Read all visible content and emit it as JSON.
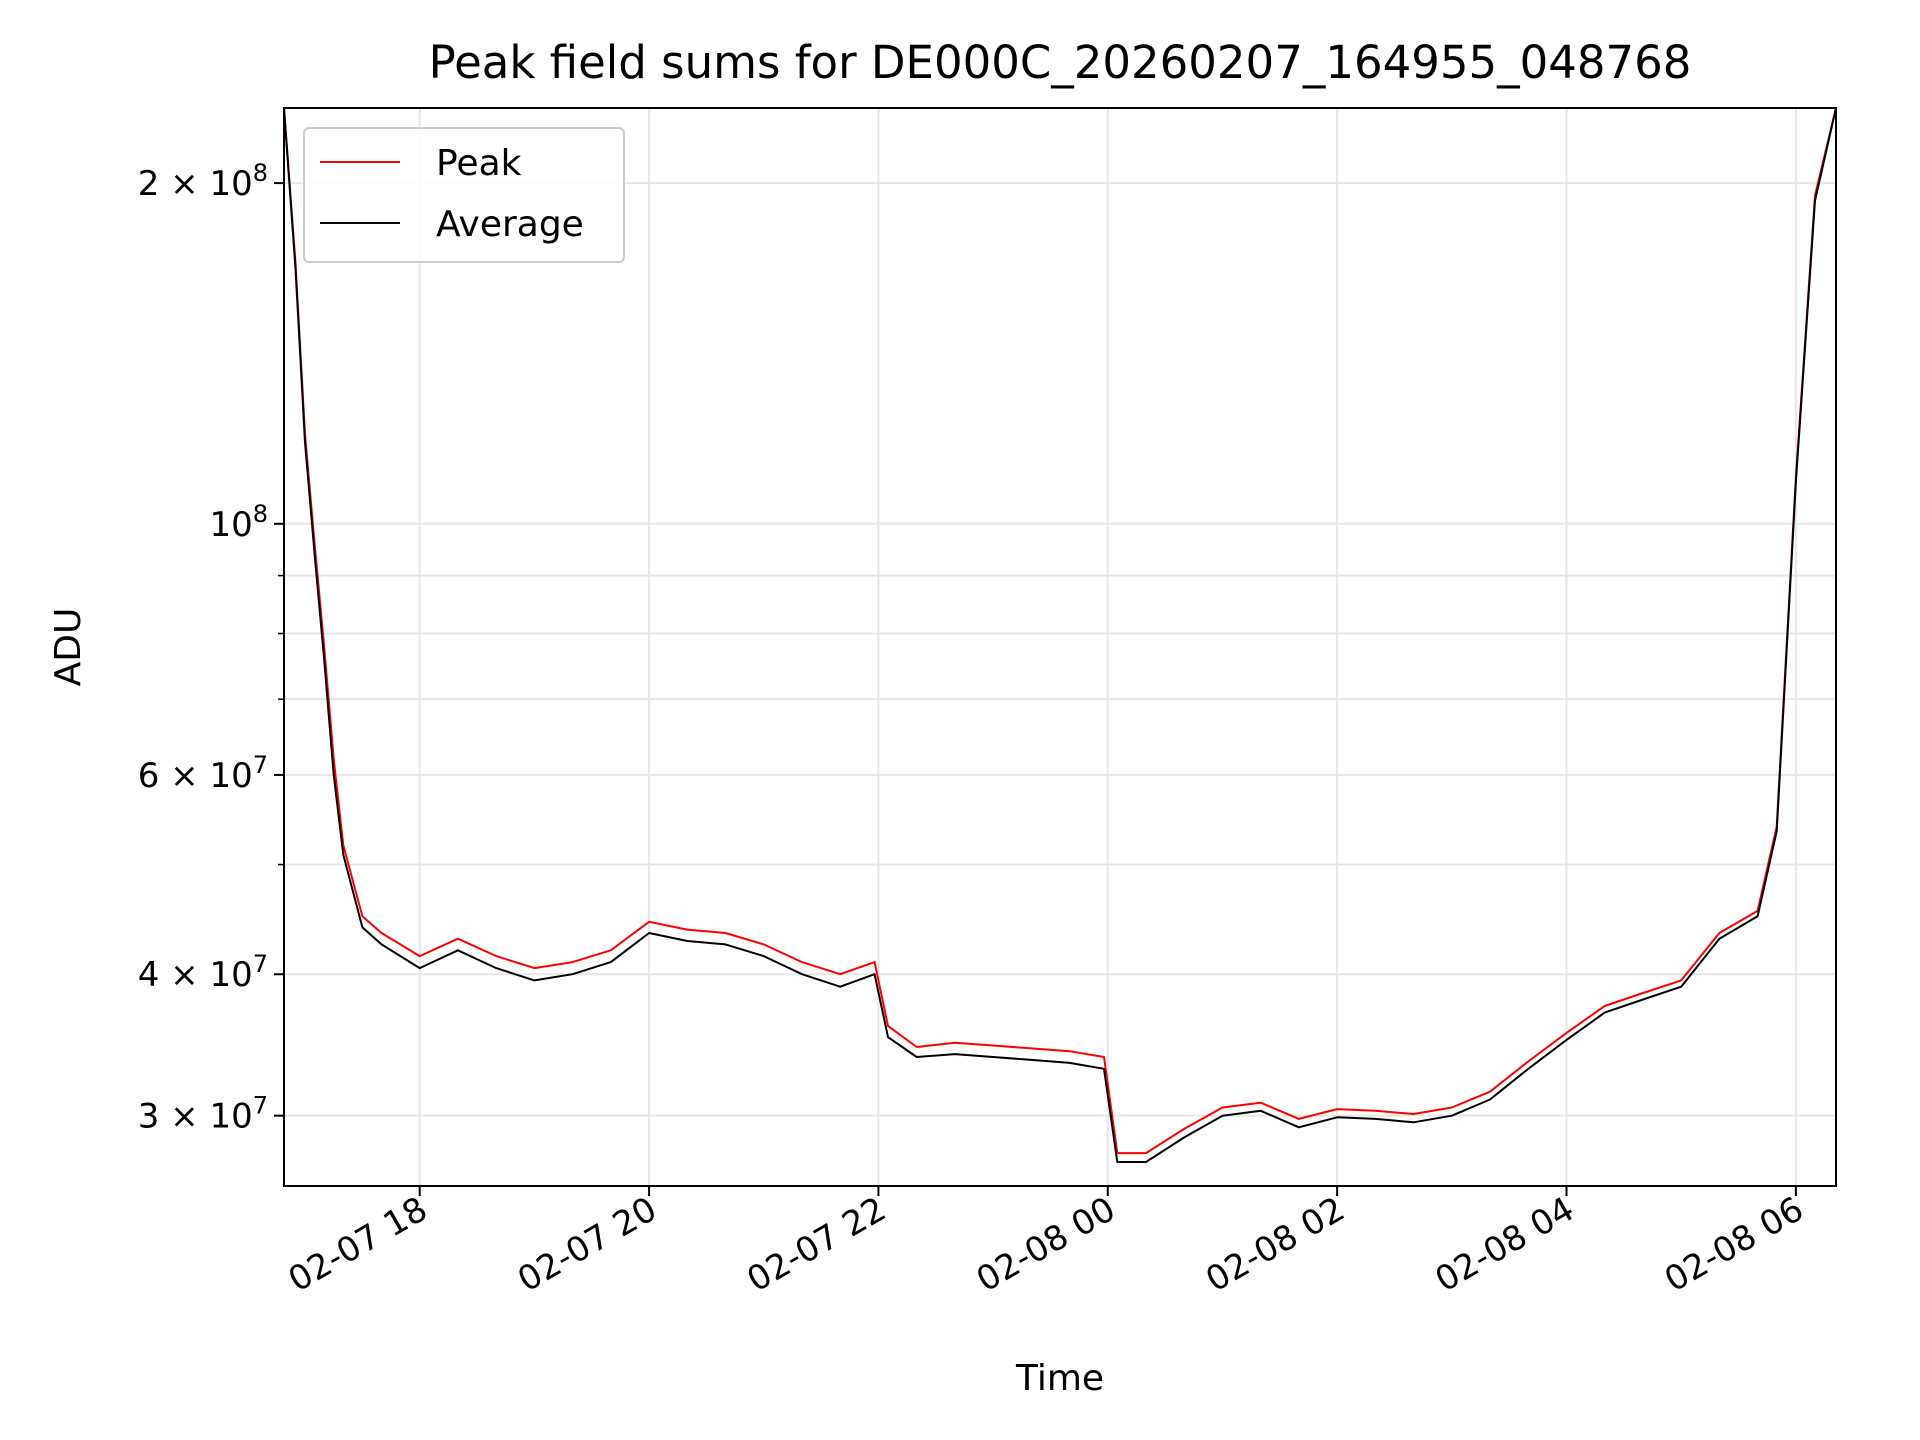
{
  "chart_data": {
    "type": "line",
    "title": "Peak field sums for DE000C_20260207_164955_048768",
    "xlabel": "Time",
    "ylabel": "ADU",
    "y_scale": "log",
    "ylim": [
      26000000,
      233000000
    ],
    "xlim": [
      "02-07 16:49",
      "02-08 06:21"
    ],
    "grid": true,
    "legend_position": "upper-left",
    "x_ticks": [
      {
        "t": "02-07 18:00",
        "label": "02-07 18"
      },
      {
        "t": "02-07 20:00",
        "label": "02-07 20"
      },
      {
        "t": "02-07 22:00",
        "label": "02-07 22"
      },
      {
        "t": "02-08 00:00",
        "label": "02-08 00"
      },
      {
        "t": "02-08 02:00",
        "label": "02-08 02"
      },
      {
        "t": "02-08 04:00",
        "label": "02-08 04"
      },
      {
        "t": "02-08 06:00",
        "label": "02-08 06"
      }
    ],
    "y_ticks": [
      {
        "value": 30000000,
        "mantissa": "3",
        "exponent": "7"
      },
      {
        "value": 40000000,
        "mantissa": "4",
        "exponent": "7"
      },
      {
        "value": 60000000,
        "mantissa": "6",
        "exponent": "7"
      },
      {
        "value": 100000000,
        "mantissa": "",
        "exponent": "8"
      },
      {
        "value": 200000000,
        "mantissa": "2",
        "exponent": "8"
      }
    ],
    "y_minor_ticks": [
      50000000,
      70000000,
      80000000,
      90000000
    ],
    "series": [
      {
        "name": "Peak",
        "color": "#ff0000",
        "x": [
          "02-07 16:49",
          "02-07 16:55",
          "02-07 17:00",
          "02-07 17:05",
          "02-07 17:10",
          "02-07 17:15",
          "02-07 17:20",
          "02-07 17:30",
          "02-07 17:40",
          "02-07 18:00",
          "02-07 18:20",
          "02-07 18:40",
          "02-07 19:00",
          "02-07 19:20",
          "02-07 19:40",
          "02-07 20:00",
          "02-07 20:20",
          "02-07 20:40",
          "02-07 21:00",
          "02-07 21:20",
          "02-07 21:40",
          "02-07 21:58",
          "02-07 22:05",
          "02-07 22:20",
          "02-07 22:40",
          "02-07 23:00",
          "02-07 23:20",
          "02-07 23:40",
          "02-07 23:58",
          "02-08 00:05",
          "02-08 00:20",
          "02-08 00:40",
          "02-08 01:00",
          "02-08 01:20",
          "02-08 01:40",
          "02-08 02:00",
          "02-08 02:20",
          "02-08 02:40",
          "02-08 03:00",
          "02-08 03:20",
          "02-08 03:40",
          "02-08 04:00",
          "02-08 04:20",
          "02-08 04:40",
          "02-08 05:00",
          "02-08 05:20",
          "02-08 05:40",
          "02-08 05:50",
          "02-08 06:00",
          "02-08 06:10",
          "02-08 06:21"
        ],
        "values": [
          233000000,
          170000000,
          120000000,
          96000000,
          78000000,
          62000000,
          52000000,
          45000000,
          43500000,
          41500000,
          43000000,
          41500000,
          40500000,
          41000000,
          42000000,
          44500000,
          43800000,
          43500000,
          42500000,
          41000000,
          40000000,
          41000000,
          36000000,
          34500000,
          34800000,
          34600000,
          34400000,
          34200000,
          33800000,
          27800000,
          27800000,
          29200000,
          30500000,
          30800000,
          29800000,
          30400000,
          30300000,
          30100000,
          30500000,
          31500000,
          33500000,
          35500000,
          37500000,
          38500000,
          39500000,
          43500000,
          45500000,
          54000000,
          110000000,
          195000000,
          233000000
        ]
      },
      {
        "name": "Average",
        "color": "#000000",
        "x": [
          "02-07 16:49",
          "02-07 16:55",
          "02-07 17:00",
          "02-07 17:05",
          "02-07 17:10",
          "02-07 17:15",
          "02-07 17:20",
          "02-07 17:30",
          "02-07 17:40",
          "02-07 18:00",
          "02-07 18:20",
          "02-07 18:40",
          "02-07 19:00",
          "02-07 19:20",
          "02-07 19:40",
          "02-07 20:00",
          "02-07 20:20",
          "02-07 20:40",
          "02-07 21:00",
          "02-07 21:20",
          "02-07 21:40",
          "02-07 21:58",
          "02-07 22:05",
          "02-07 22:20",
          "02-07 22:40",
          "02-07 23:00",
          "02-07 23:20",
          "02-07 23:40",
          "02-07 23:58",
          "02-08 00:05",
          "02-08 00:20",
          "02-08 00:40",
          "02-08 01:00",
          "02-08 01:20",
          "02-08 01:40",
          "02-08 02:00",
          "02-08 02:20",
          "02-08 02:40",
          "02-08 03:00",
          "02-08 03:20",
          "02-08 03:40",
          "02-08 04:00",
          "02-08 04:20",
          "02-08 04:40",
          "02-08 05:00",
          "02-08 05:20",
          "02-08 05:40",
          "02-08 05:50",
          "02-08 06:00",
          "02-08 06:10",
          "02-08 06:21"
        ],
        "values": [
          233000000,
          168000000,
          118000000,
          94000000,
          76000000,
          60000000,
          51000000,
          44000000,
          42500000,
          40500000,
          42000000,
          40500000,
          39500000,
          40000000,
          41000000,
          43500000,
          42800000,
          42500000,
          41500000,
          40000000,
          39000000,
          40000000,
          35200000,
          33800000,
          34000000,
          33800000,
          33600000,
          33400000,
          33000000,
          27300000,
          27300000,
          28700000,
          30000000,
          30300000,
          29300000,
          29900000,
          29800000,
          29600000,
          30000000,
          31000000,
          33000000,
          35000000,
          37000000,
          38000000,
          39000000,
          43000000,
          45000000,
          53500000,
          109000000,
          193000000,
          233000000
        ]
      }
    ]
  }
}
